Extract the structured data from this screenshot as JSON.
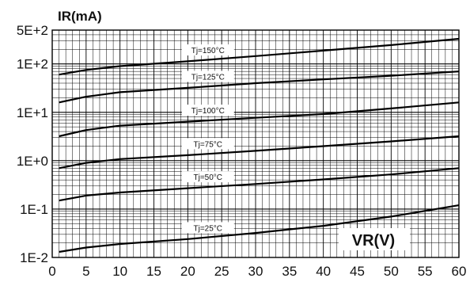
{
  "chart_data": {
    "type": "line",
    "xlabel": "VR(V)",
    "ylabel": "IR(mA)",
    "xlim": [
      0,
      60
    ],
    "ylim": [
      0.01,
      500
    ],
    "yscale": "log",
    "grid": true,
    "x_ticks": [
      "0",
      "5",
      "10",
      "15",
      "20",
      "25",
      "30",
      "35",
      "40",
      "45",
      "50",
      "55",
      "60"
    ],
    "y_ticks": [
      {
        "value": 500,
        "label": "5E+2"
      },
      {
        "value": 100,
        "label": "1E+2"
      },
      {
        "value": 10,
        "label": "1E+1"
      },
      {
        "value": 1,
        "label": "1E+0"
      },
      {
        "value": 0.1,
        "label": "1E-1"
      },
      {
        "value": 0.01,
        "label": "1E-2"
      }
    ],
    "series": [
      {
        "name": "Tj=150°C",
        "x": [
          1,
          5,
          10,
          20,
          30,
          40,
          50,
          60
        ],
        "y": [
          60,
          75,
          90,
          113,
          145,
          188,
          245,
          330
        ],
        "label_x": 19
      },
      {
        "name": "Tj=125°C",
        "x": [
          1,
          5,
          10,
          20,
          30,
          40,
          50,
          60
        ],
        "y": [
          16,
          21,
          26,
          32,
          40,
          48,
          57,
          70
        ],
        "label_x": 19
      },
      {
        "name": "Tj=100°C",
        "x": [
          1,
          5,
          10,
          20,
          30,
          40,
          50,
          60
        ],
        "y": [
          3.2,
          4.3,
          5.3,
          6.4,
          7.7,
          9.2,
          12,
          16
        ],
        "label_x": 19
      },
      {
        "name": "Tj=75°C",
        "x": [
          1,
          5,
          10,
          20,
          30,
          40,
          50,
          60
        ],
        "y": [
          0.7,
          0.9,
          1.08,
          1.3,
          1.6,
          2.0,
          2.5,
          3.2
        ],
        "label_x": 19
      },
      {
        "name": "Tj=50°C",
        "x": [
          1,
          5,
          10,
          20,
          30,
          40,
          50,
          60
        ],
        "y": [
          0.15,
          0.19,
          0.22,
          0.27,
          0.33,
          0.41,
          0.52,
          0.7
        ],
        "label_x": 19
      },
      {
        "name": "Tj=25°C",
        "x": [
          1,
          5,
          10,
          20,
          30,
          40,
          50,
          60
        ],
        "y": [
          0.013,
          0.016,
          0.019,
          0.024,
          0.032,
          0.045,
          0.07,
          0.12
        ],
        "label_x": 19
      }
    ]
  }
}
